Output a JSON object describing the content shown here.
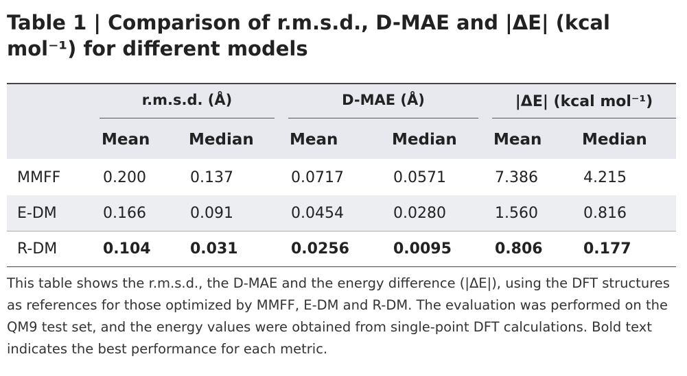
{
  "header": {
    "label": "Table 1",
    "title": "Comparison of r.m.s.d., D-MAE and |ΔE| (kcal mol⁻¹) for different models"
  },
  "table": {
    "groups": [
      "r.m.s.d. (Å)",
      "D-MAE (Å)",
      "|ΔE| (kcal mol⁻¹)"
    ],
    "subheaders": [
      "Mean",
      "Median",
      "Mean",
      "Median",
      "Mean",
      "Median"
    ],
    "rows": [
      {
        "label": "MMFF",
        "cells": [
          "0.200",
          "0.137",
          "0.0717",
          "0.0571",
          "7.386",
          "4.215"
        ],
        "best": false
      },
      {
        "label": "E-DM",
        "cells": [
          "0.166",
          "0.091",
          "0.0454",
          "0.0280",
          "1.560",
          "0.816"
        ],
        "best": false
      },
      {
        "label": "R-DM",
        "cells": [
          "0.104",
          "0.031",
          "0.0256",
          "0.0095",
          "0.806",
          "0.177"
        ],
        "best": true
      }
    ]
  },
  "footnote": "This table shows the r.m.s.d., the D-MAE and the energy difference (|ΔE|), using the DFT structures as references for those optimized by MMFF, E-DM and R-DM. The evaluation was performed on the QM9 test set, and the energy values were obtained from single-point DFT calculations. Bold text indicates the best performance for each metric."
}
